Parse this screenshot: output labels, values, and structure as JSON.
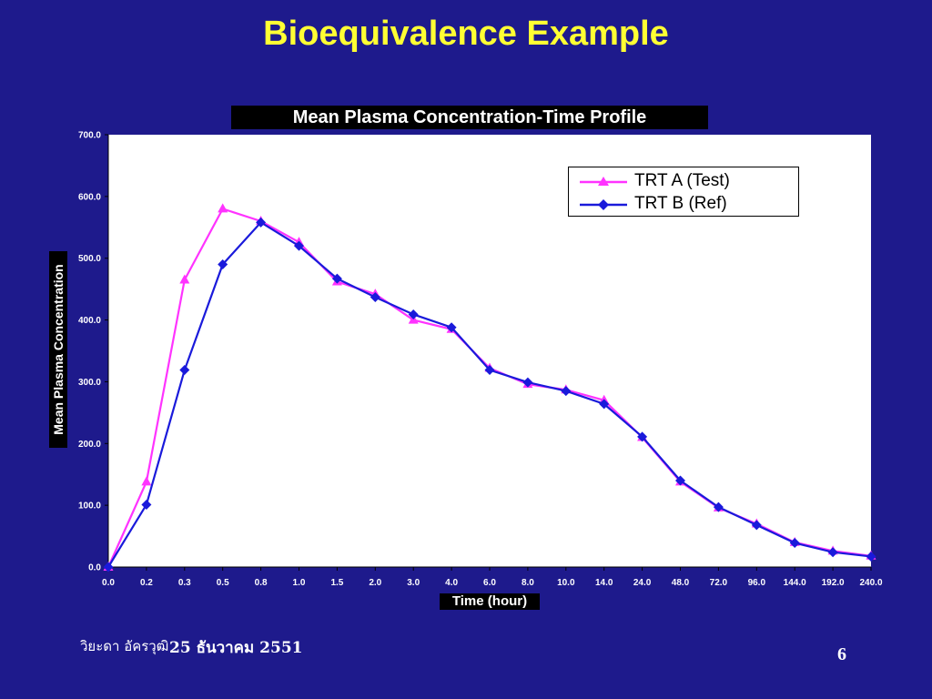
{
  "slide": {
    "title": "Bioequivalence Example",
    "footer_author": "วิยะดา อัครวุฒิ",
    "footer_date": "25 ธันวาคม 2551",
    "page_number": "6"
  },
  "colors": {
    "background": "#1e1a8c",
    "title": "#ffff33",
    "series_a": "#ff33ff",
    "series_b": "#1a1adb"
  },
  "chart_data": {
    "type": "line",
    "title": "Mean Plasma Concentration-Time Profile",
    "xlabel": "Time (hour)",
    "ylabel": "Mean Plasma Concentration",
    "x": [
      "0.0",
      "0.2",
      "0.3",
      "0.5",
      "0.8",
      "1.0",
      "1.5",
      "2.0",
      "3.0",
      "4.0",
      "6.0",
      "8.0",
      "10.0",
      "14.0",
      "24.0",
      "48.0",
      "72.0",
      "96.0",
      "144.0",
      "192.0",
      "240.0"
    ],
    "ylim": [
      0,
      700
    ],
    "yticks": [
      "0.0",
      "100.0",
      "200.0",
      "300.0",
      "400.0",
      "500.0",
      "600.0",
      "700.0"
    ],
    "grid": false,
    "legend": "top-right",
    "series": [
      {
        "name": "TRT A (Test)",
        "marker": "triangle",
        "values": [
          0,
          138,
          465,
          580,
          560,
          526,
          462,
          442,
          400,
          385,
          322,
          296,
          287,
          270,
          210,
          138,
          96,
          70,
          40,
          26,
          18
        ]
      },
      {
        "name": "TRT B (Ref)",
        "marker": "diamond",
        "values": [
          0,
          101,
          319,
          490,
          558,
          520,
          467,
          437,
          409,
          388,
          319,
          299,
          285,
          264,
          211,
          140,
          97,
          68,
          39,
          24,
          17
        ]
      }
    ]
  }
}
